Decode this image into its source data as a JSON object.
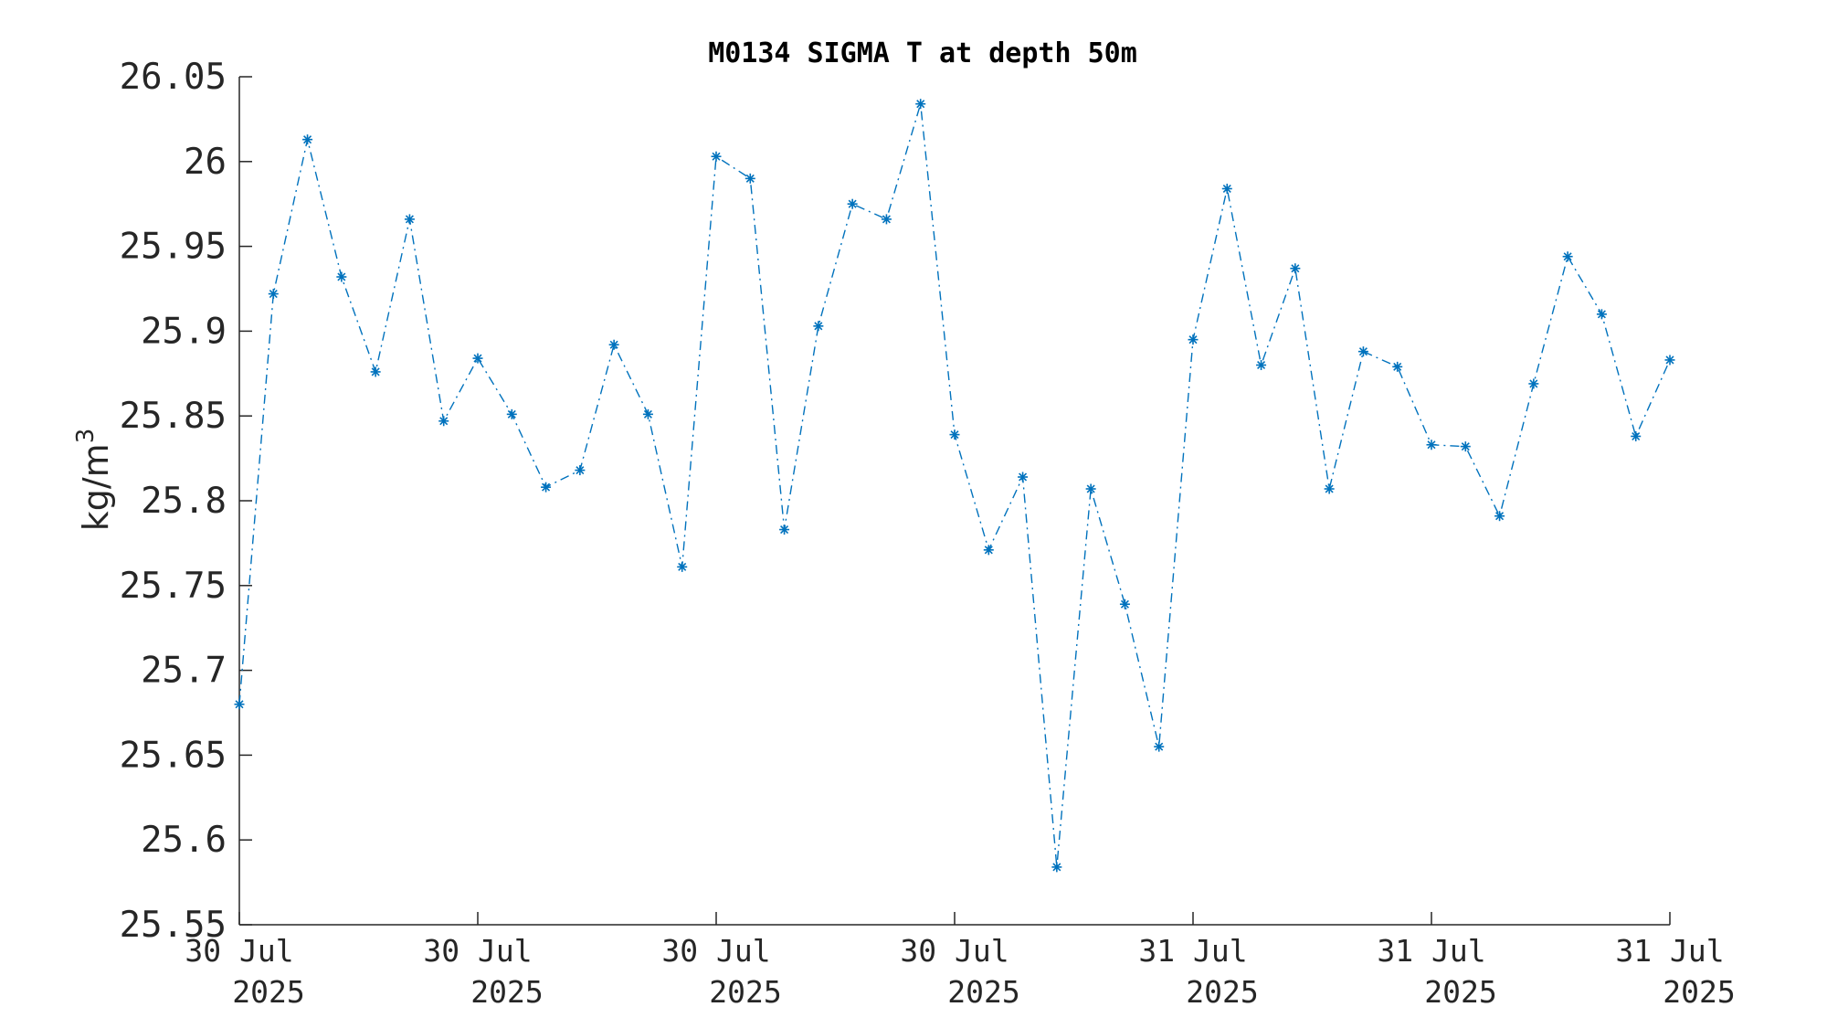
{
  "chart_data": {
    "type": "line",
    "title": "M0134 SIGMA T at depth 50m",
    "ylabel": "kg/m",
    "ylabel_sup": "3",
    "ylim": [
      25.55,
      26.05
    ],
    "yticks": [
      {
        "value": 25.55,
        "label": "25.55"
      },
      {
        "value": 25.6,
        "label": "25.6"
      },
      {
        "value": 25.65,
        "label": "25.65"
      },
      {
        "value": 25.7,
        "label": "25.7"
      },
      {
        "value": 25.75,
        "label": "25.75"
      },
      {
        "value": 25.8,
        "label": "25.8"
      },
      {
        "value": 25.85,
        "label": "25.85"
      },
      {
        "value": 25.9,
        "label": "25.9"
      },
      {
        "value": 25.95,
        "label": "25.95"
      },
      {
        "value": 26,
        "label": "26"
      },
      {
        "value": 26.05,
        "label": "26.05"
      }
    ],
    "xlim": [
      "2025-07-30T00:00",
      "2025-07-31T18:00"
    ],
    "xticks": [
      {
        "value": "2025-07-30T00:00",
        "line1": "30 Jul",
        "line2": "2025"
      },
      {
        "value": "2025-07-30T07:00",
        "line1": "30 Jul",
        "line2": "2025"
      },
      {
        "value": "2025-07-30T14:00",
        "line1": "30 Jul",
        "line2": "2025"
      },
      {
        "value": "2025-07-30T21:00",
        "line1": "30 Jul",
        "line2": "2025"
      },
      {
        "value": "2025-07-31T04:00",
        "line1": "31 Jul",
        "line2": "2025"
      },
      {
        "value": "2025-07-31T11:00",
        "line1": "31 Jul",
        "line2": "2025"
      },
      {
        "value": "2025-07-31T18:00",
        "line1": "31 Jul",
        "line2": "2025"
      }
    ],
    "series": [
      {
        "color": "#0072bd",
        "marker": "asterisk",
        "line_style": "dash-dot",
        "x": [
          "2025-07-30T00:00",
          "2025-07-30T01:00",
          "2025-07-30T02:00",
          "2025-07-30T03:00",
          "2025-07-30T04:00",
          "2025-07-30T05:00",
          "2025-07-30T06:00",
          "2025-07-30T07:00",
          "2025-07-30T08:00",
          "2025-07-30T09:00",
          "2025-07-30T10:00",
          "2025-07-30T11:00",
          "2025-07-30T12:00",
          "2025-07-30T13:00",
          "2025-07-30T14:00",
          "2025-07-30T15:00",
          "2025-07-30T16:00",
          "2025-07-30T17:00",
          "2025-07-30T18:00",
          "2025-07-30T19:00",
          "2025-07-30T20:00",
          "2025-07-30T21:00",
          "2025-07-30T22:00",
          "2025-07-30T23:00",
          "2025-07-31T00:00",
          "2025-07-31T01:00",
          "2025-07-31T02:00",
          "2025-07-31T03:00",
          "2025-07-31T04:00",
          "2025-07-31T05:00",
          "2025-07-31T06:00",
          "2025-07-31T07:00",
          "2025-07-31T08:00",
          "2025-07-31T09:00",
          "2025-07-31T10:00",
          "2025-07-31T11:00",
          "2025-07-31T12:00",
          "2025-07-31T13:00",
          "2025-07-31T14:00",
          "2025-07-31T15:00",
          "2025-07-31T16:00",
          "2025-07-31T17:00",
          "2025-07-31T18:00"
        ],
        "y": [
          25.68,
          25.922,
          26.013,
          25.932,
          25.876,
          25.966,
          25.847,
          25.884,
          25.851,
          25.808,
          25.818,
          25.892,
          25.851,
          25.761,
          26.003,
          25.99,
          25.783,
          25.903,
          25.975,
          25.966,
          26.034,
          25.839,
          25.771,
          25.814,
          25.584,
          25.807,
          25.739,
          25.655,
          25.895,
          25.984,
          25.88,
          25.937,
          25.807,
          25.888,
          25.879,
          25.833,
          25.832,
          25.791,
          25.869,
          25.944,
          25.91,
          25.838,
          25.883
        ]
      }
    ]
  }
}
